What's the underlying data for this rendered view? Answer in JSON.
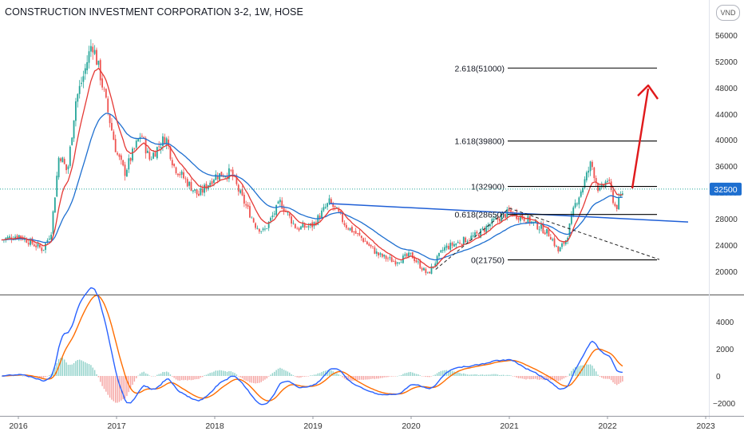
{
  "header": {
    "title": "CONSTRUCTION INVESTMENT CORPORATION 3-2, 1W, HOSE",
    "currency": "VND"
  },
  "colors": {
    "up_candle": "#26a69a",
    "down_candle": "#ef5350",
    "ema_fast": "#e53935",
    "ema_slow": "#1e6fd0",
    "trendline": "#1f5fd6",
    "fib_line": "#000000",
    "projection_arrow": "#e0191b",
    "price_badge": "#1e6fd0",
    "macd_line": "#2962ff",
    "signal_line": "#ff6d00",
    "hist_up": "#26a69a",
    "hist_down": "#ef5350"
  },
  "chart_data": [
    {
      "type": "candlestick",
      "title": "CONSTRUCTION INVESTMENT CORPORATION 3-2, 1W, HOSE",
      "x_tick_labels": [
        "2016",
        "2017",
        "2018",
        "2019",
        "2020",
        "2021",
        "2022",
        "2023"
      ],
      "y_tick_labels": [
        20000,
        24000,
        28000,
        32000,
        36000,
        40000,
        44000,
        48000,
        52000,
        56000
      ],
      "ylim": [
        17000,
        59000
      ],
      "grid": false,
      "last_price": 32500,
      "price_path": [
        [
          "2015-11",
          24800
        ],
        [
          "2016-01",
          25500
        ],
        [
          "2016-04",
          23300
        ],
        [
          "2016-05",
          26000
        ],
        [
          "2016-06",
          38000
        ],
        [
          "2016-07",
          35000
        ],
        [
          "2016-08",
          46000
        ],
        [
          "2016-09",
          50000
        ],
        [
          "2016-10",
          55000
        ],
        [
          "2016-11",
          50000
        ],
        [
          "2016-12",
          44000
        ],
        [
          "2017-01",
          38000
        ],
        [
          "2017-02",
          35000
        ],
        [
          "2017-03",
          38000
        ],
        [
          "2017-04",
          41000
        ],
        [
          "2017-05",
          37000
        ],
        [
          "2017-07",
          40500
        ],
        [
          "2017-08",
          36000
        ],
        [
          "2017-10",
          33000
        ],
        [
          "2017-11",
          31500
        ],
        [
          "2018-01",
          34500
        ],
        [
          "2018-03",
          35000
        ],
        [
          "2018-04",
          32000
        ],
        [
          "2018-06",
          27000
        ],
        [
          "2018-07",
          26000
        ],
        [
          "2018-09",
          30500
        ],
        [
          "2018-11",
          26500
        ],
        [
          "2019-01",
          27000
        ],
        [
          "2019-03",
          30500
        ],
        [
          "2019-04",
          29000
        ],
        [
          "2019-05",
          27000
        ],
        [
          "2019-07",
          25000
        ],
        [
          "2019-09",
          22500
        ],
        [
          "2019-11",
          21500
        ],
        [
          "2020-01",
          22500
        ],
        [
          "2020-03",
          19500
        ],
        [
          "2020-05",
          23500
        ],
        [
          "2020-07",
          24500
        ],
        [
          "2020-09",
          25500
        ],
        [
          "2020-11",
          27500
        ],
        [
          "2021-01",
          29000
        ],
        [
          "2021-03",
          28000
        ],
        [
          "2021-05",
          26500
        ],
        [
          "2021-06",
          25500
        ],
        [
          "2021-07",
          23000
        ],
        [
          "2021-08",
          25000
        ],
        [
          "2021-09",
          30000
        ],
        [
          "2021-10",
          33000
        ],
        [
          "2021-11",
          36500
        ],
        [
          "2021-12",
          32000
        ],
        [
          "2022-01",
          34000
        ],
        [
          "2022-02",
          29500
        ],
        [
          "2022-03",
          32500
        ]
      ],
      "fibonacci_levels": [
        {
          "ratio": "2.618",
          "price": 51000,
          "label": "2.618(51000)"
        },
        {
          "ratio": "1.618",
          "price": 39800,
          "label": "1.618(39800)"
        },
        {
          "ratio": "1",
          "price": 32900,
          "label": "1(32900)"
        },
        {
          "ratio": "0.618",
          "price": 28650,
          "label": "0.618(28650)"
        },
        {
          "ratio": "0",
          "price": 21750,
          "label": "0(21750)"
        }
      ],
      "series": [
        {
          "values_note_free": true,
          "kind": "ema_fast"
        },
        {
          "kind": "ema_slow"
        }
      ]
    },
    {
      "type": "macd",
      "y_tick_labels": [
        4000,
        2000,
        0,
        -2000
      ],
      "ylim": [
        -2500,
        5800
      ]
    }
  ]
}
